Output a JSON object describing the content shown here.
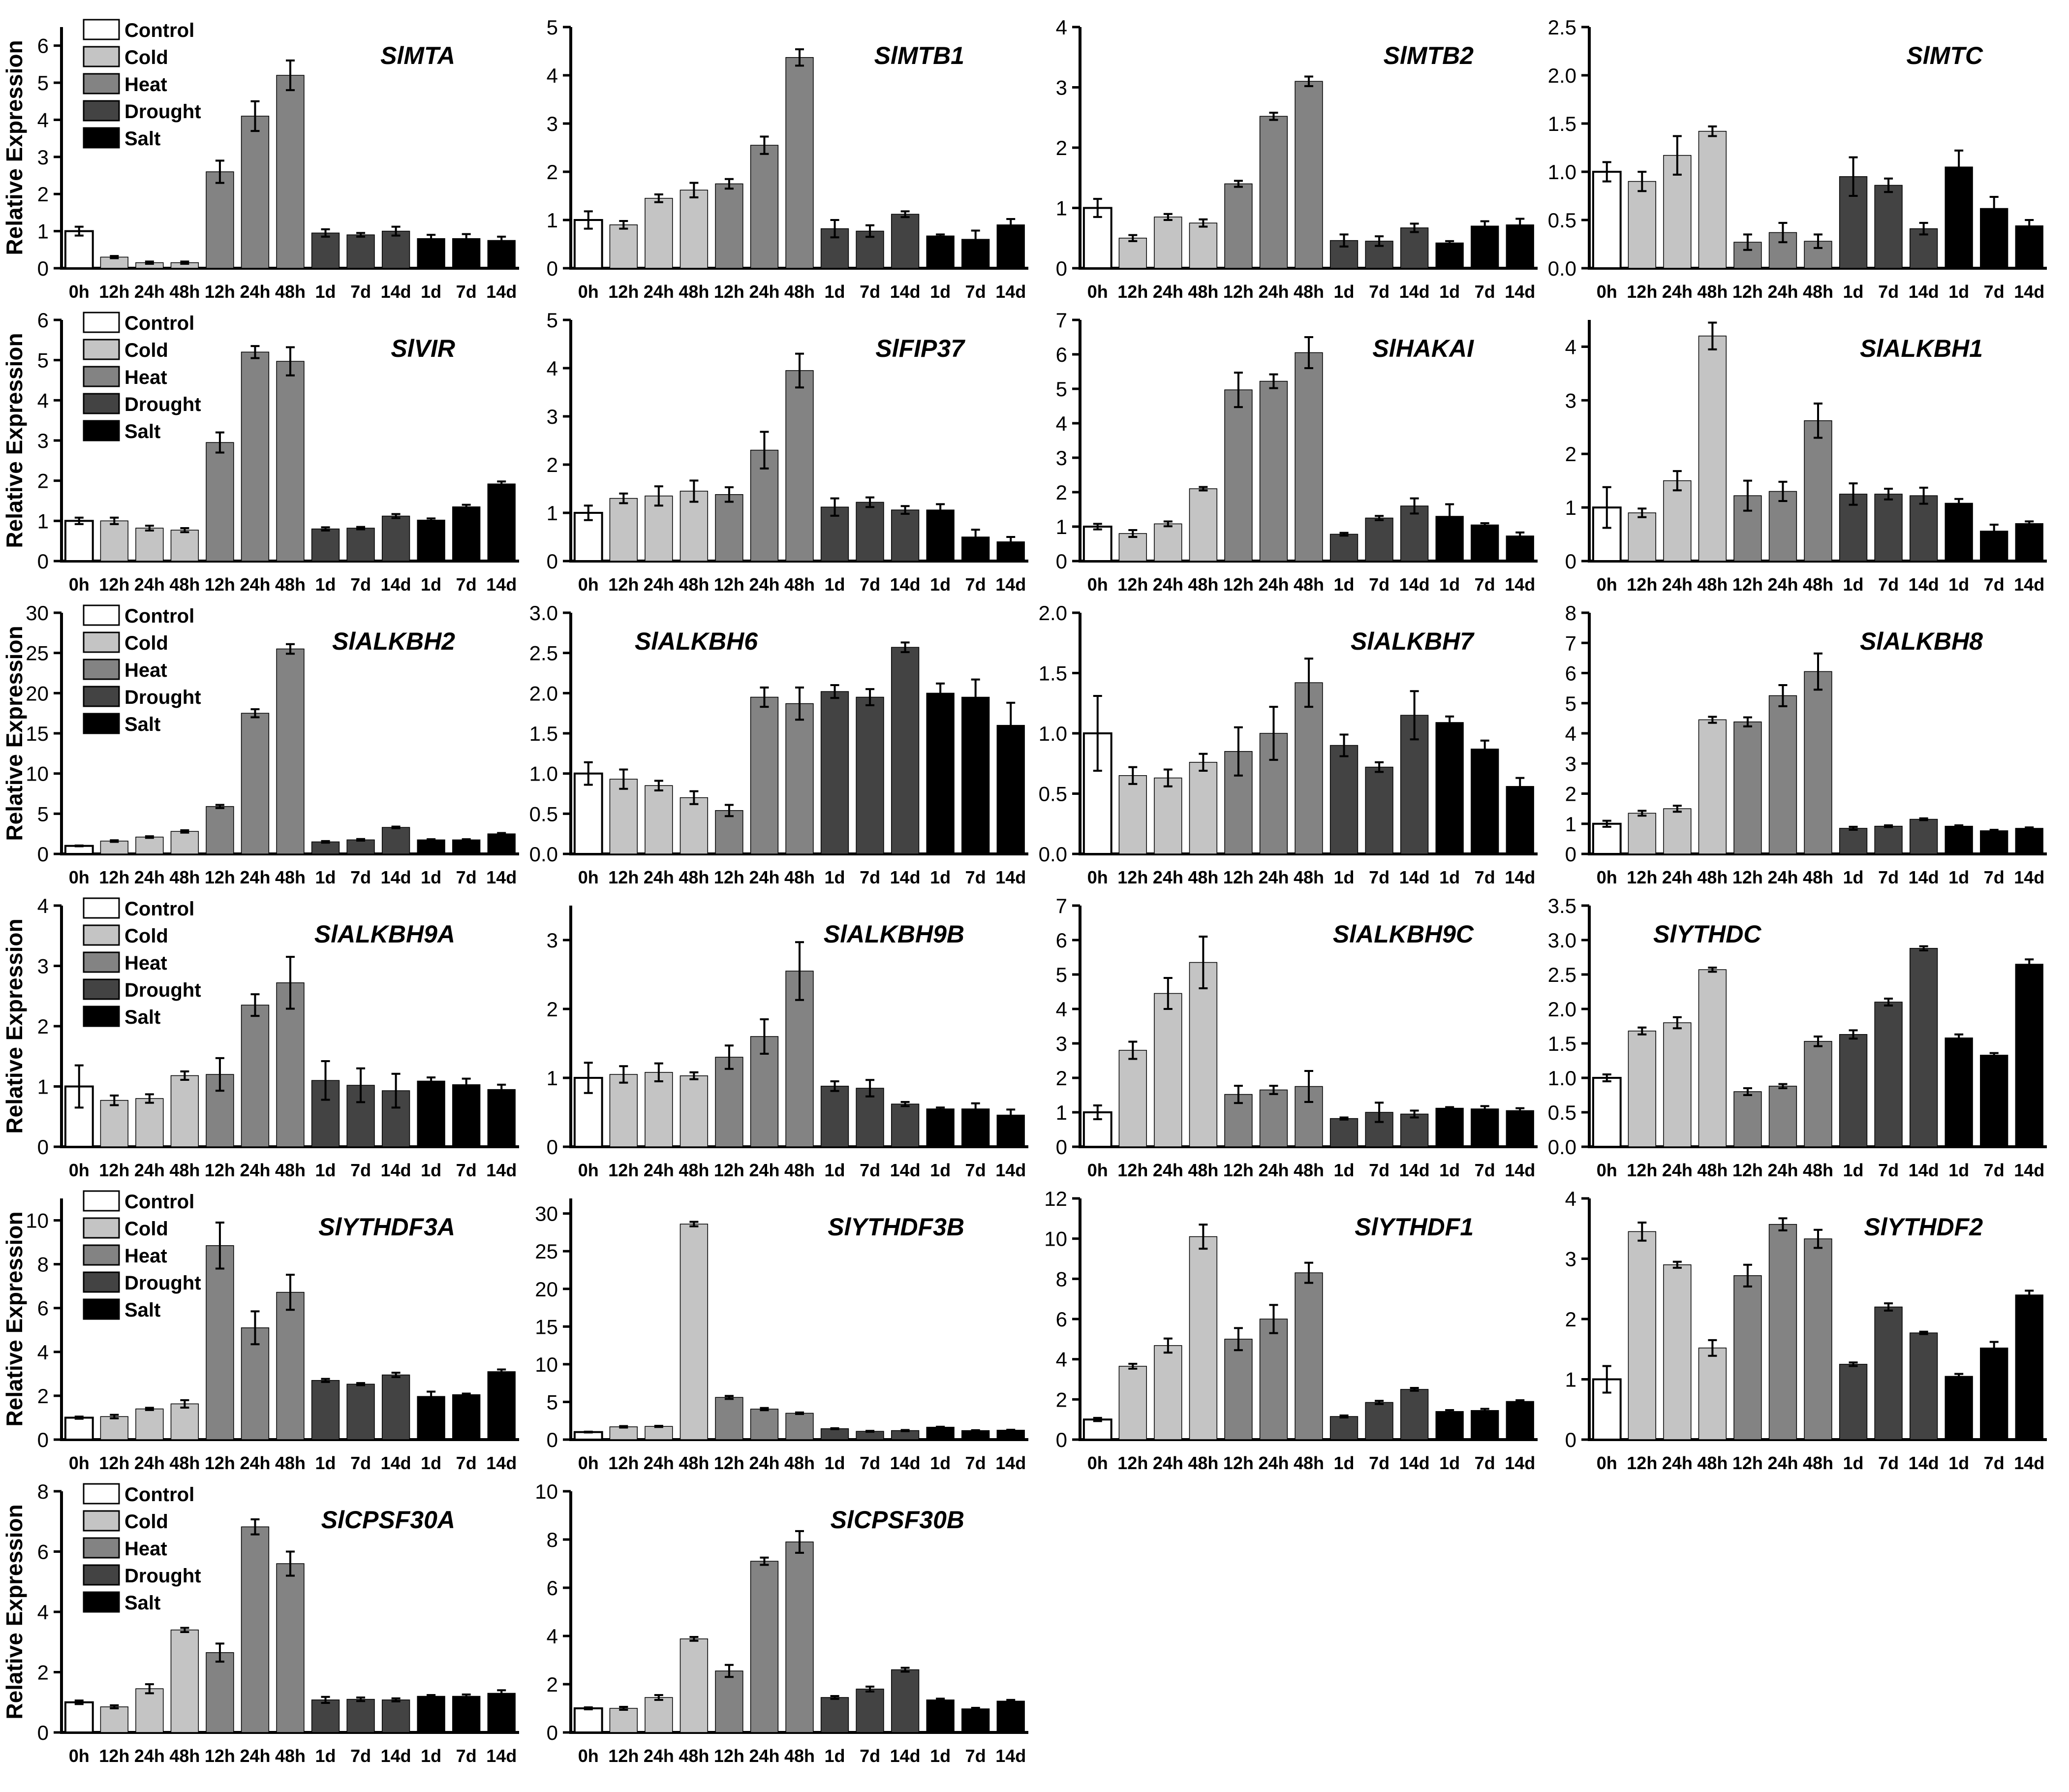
{
  "figure": {
    "ylabel": "Relative Expression",
    "categories": [
      "0h",
      "12h",
      "24h",
      "48h",
      "12h",
      "24h",
      "48h",
      "1d",
      "7d",
      "14d",
      "1d",
      "7d",
      "14d"
    ],
    "colors": {
      "Control": "#ffffff",
      "Cold": "#c4c4c4",
      "Heat": "#838383",
      "Drought": "#434343",
      "Salt": "#000000"
    },
    "legend": [
      "Control",
      "Cold",
      "Heat",
      "Drought",
      "Salt"
    ],
    "bar_treatment": [
      "Control",
      "Cold",
      "Cold",
      "Cold",
      "Heat",
      "Heat",
      "Heat",
      "Drought",
      "Drought",
      "Drought",
      "Salt",
      "Salt",
      "Salt"
    ]
  },
  "chart_data": [
    {
      "type": "bar",
      "title": "SlMTA",
      "ylim": [
        0,
        6.5
      ],
      "yticks": [
        0,
        1,
        2,
        3,
        4,
        5,
        6
      ],
      "tick_labels": [
        "0",
        "1",
        "2",
        "3",
        "4",
        "5",
        "6"
      ],
      "legend": true,
      "title_pos": "right",
      "values": [
        1.0,
        0.3,
        0.15,
        0.15,
        2.6,
        4.1,
        5.2,
        0.95,
        0.9,
        1.0,
        0.8,
        0.8,
        0.75
      ],
      "errors": [
        0.12,
        0.03,
        0.03,
        0.03,
        0.3,
        0.4,
        0.4,
        0.1,
        0.05,
        0.12,
        0.1,
        0.12,
        0.1
      ]
    },
    {
      "type": "bar",
      "title": "SlMTB1",
      "ylim": [
        0,
        5
      ],
      "yticks": [
        0,
        1,
        2,
        3,
        4,
        5
      ],
      "tick_labels": [
        "0",
        "1",
        "2",
        "3",
        "4",
        "5"
      ],
      "legend": false,
      "title_pos": "right",
      "values": [
        1.0,
        0.9,
        1.45,
        1.62,
        1.75,
        2.55,
        4.37,
        0.82,
        0.77,
        1.12,
        0.67,
        0.6,
        0.9
      ],
      "errors": [
        0.18,
        0.08,
        0.08,
        0.15,
        0.1,
        0.18,
        0.17,
        0.18,
        0.12,
        0.06,
        0.03,
        0.18,
        0.12
      ]
    },
    {
      "type": "bar",
      "title": "SlMTB2",
      "ylim": [
        0,
        4
      ],
      "yticks": [
        0,
        1,
        2,
        3,
        4
      ],
      "tick_labels": [
        "0",
        "1",
        "2",
        "3",
        "4"
      ],
      "legend": false,
      "title_pos": "right",
      "values": [
        1.0,
        0.5,
        0.85,
        0.75,
        1.4,
        2.52,
        3.1,
        0.46,
        0.45,
        0.67,
        0.42,
        0.7,
        0.72
      ],
      "errors": [
        0.15,
        0.05,
        0.05,
        0.06,
        0.05,
        0.06,
        0.08,
        0.1,
        0.08,
        0.07,
        0.03,
        0.08,
        0.1
      ]
    },
    {
      "type": "bar",
      "title": "SlMTC",
      "ylim": [
        0,
        2.5
      ],
      "yticks": [
        0,
        0.5,
        1.0,
        1.5,
        2.0,
        2.5
      ],
      "tick_labels": [
        "0.0",
        "0.5",
        "1.0",
        "1.5",
        "2.0",
        "2.5"
      ],
      "legend": false,
      "title_pos": "right",
      "values": [
        1.0,
        0.9,
        1.17,
        1.42,
        0.27,
        0.37,
        0.28,
        0.95,
        0.86,
        0.41,
        1.05,
        0.62,
        0.44
      ],
      "errors": [
        0.1,
        0.1,
        0.2,
        0.05,
        0.08,
        0.1,
        0.07,
        0.2,
        0.07,
        0.06,
        0.17,
        0.12,
        0.06
      ]
    },
    {
      "type": "bar",
      "title": "SlVIR",
      "ylim": [
        0,
        6
      ],
      "yticks": [
        0,
        1,
        2,
        3,
        4,
        5,
        6
      ],
      "tick_labels": [
        "0",
        "1",
        "2",
        "3",
        "4",
        "5",
        "6"
      ],
      "legend": true,
      "title_pos": "right",
      "values": [
        1.0,
        1.0,
        0.82,
        0.77,
        2.95,
        5.2,
        4.97,
        0.8,
        0.82,
        1.12,
        1.02,
        1.35,
        1.92
      ],
      "errors": [
        0.08,
        0.08,
        0.06,
        0.05,
        0.25,
        0.15,
        0.35,
        0.04,
        0.03,
        0.05,
        0.04,
        0.05,
        0.06
      ]
    },
    {
      "type": "bar",
      "title": "SlFIP37",
      "ylim": [
        0,
        5
      ],
      "yticks": [
        0,
        1,
        2,
        3,
        4,
        5
      ],
      "tick_labels": [
        "0",
        "1",
        "2",
        "3",
        "4",
        "5"
      ],
      "legend": false,
      "title_pos": "right",
      "values": [
        1.0,
        1.3,
        1.35,
        1.45,
        1.38,
        2.3,
        3.95,
        1.12,
        1.22,
        1.06,
        1.06,
        0.5,
        0.4
      ],
      "errors": [
        0.15,
        0.1,
        0.2,
        0.22,
        0.15,
        0.38,
        0.35,
        0.18,
        0.1,
        0.08,
        0.12,
        0.15,
        0.1
      ]
    },
    {
      "type": "bar",
      "title": "SlHAKAI",
      "ylim": [
        0,
        7
      ],
      "yticks": [
        0,
        1,
        2,
        3,
        4,
        5,
        6,
        7
      ],
      "tick_labels": [
        "0",
        "1",
        "2",
        "3",
        "4",
        "5",
        "6",
        "7"
      ],
      "legend": false,
      "title_pos": "right",
      "values": [
        1.0,
        0.8,
        1.08,
        2.1,
        4.97,
        5.22,
        6.05,
        0.78,
        1.25,
        1.6,
        1.3,
        1.05,
        0.73
      ],
      "errors": [
        0.08,
        0.1,
        0.07,
        0.05,
        0.5,
        0.2,
        0.45,
        0.04,
        0.06,
        0.22,
        0.35,
        0.05,
        0.1
      ]
    },
    {
      "type": "bar",
      "title": "SlALKBH1",
      "ylim": [
        0,
        4.5
      ],
      "yticks": [
        0,
        1,
        2,
        3,
        4
      ],
      "tick_labels": [
        "0",
        "1",
        "2",
        "3",
        "4"
      ],
      "legend": false,
      "title_pos": "right",
      "values": [
        1.0,
        0.9,
        1.5,
        4.2,
        1.22,
        1.3,
        2.62,
        1.25,
        1.25,
        1.22,
        1.08,
        0.56,
        0.7
      ],
      "errors": [
        0.38,
        0.08,
        0.18,
        0.25,
        0.28,
        0.18,
        0.32,
        0.2,
        0.1,
        0.15,
        0.08,
        0.12,
        0.04
      ]
    },
    {
      "type": "bar",
      "title": "SlALKBH2",
      "ylim": [
        0,
        30
      ],
      "yticks": [
        0,
        5,
        10,
        15,
        20,
        25,
        30
      ],
      "tick_labels": [
        "0",
        "5",
        "10",
        "15",
        "20",
        "25",
        "30"
      ],
      "legend": true,
      "title_pos": "right",
      "values": [
        1.0,
        1.6,
        2.1,
        2.8,
        5.9,
        17.5,
        25.5,
        1.5,
        1.75,
        3.3,
        1.75,
        1.75,
        2.5
      ],
      "errors": [
        0.05,
        0.1,
        0.1,
        0.15,
        0.2,
        0.5,
        0.6,
        0.1,
        0.1,
        0.1,
        0.08,
        0.08,
        0.1
      ]
    },
    {
      "type": "bar",
      "title": "SlALKBH6",
      "ylim": [
        0,
        3.0
      ],
      "yticks": [
        0,
        0.5,
        1.0,
        1.5,
        2.0,
        2.5,
        3.0
      ],
      "tick_labels": [
        "0.0",
        "0.5",
        "1.0",
        "1.5",
        "2.0",
        "2.5",
        "3.0"
      ],
      "legend": false,
      "title_pos": "left",
      "values": [
        1.0,
        0.93,
        0.85,
        0.7,
        0.54,
        1.95,
        1.87,
        2.02,
        1.95,
        2.57,
        2.0,
        1.95,
        1.6
      ],
      "errors": [
        0.14,
        0.12,
        0.06,
        0.08,
        0.07,
        0.12,
        0.2,
        0.08,
        0.1,
        0.06,
        0.12,
        0.22,
        0.28
      ]
    },
    {
      "type": "bar",
      "title": "SlALKBH7",
      "ylim": [
        0,
        2.0
      ],
      "yticks": [
        0,
        0.5,
        1.0,
        1.5,
        2.0
      ],
      "tick_labels": [
        "0.0",
        "0.5",
        "1.0",
        "1.5",
        "2.0"
      ],
      "legend": false,
      "title_pos": "right",
      "values": [
        1.0,
        0.65,
        0.63,
        0.76,
        0.85,
        1.0,
        1.42,
        0.9,
        0.72,
        1.15,
        1.09,
        0.87,
        0.56
      ],
      "errors": [
        0.31,
        0.07,
        0.07,
        0.07,
        0.2,
        0.22,
        0.2,
        0.09,
        0.04,
        0.2,
        0.05,
        0.07,
        0.07
      ]
    },
    {
      "type": "bar",
      "title": "SlALKBH8",
      "ylim": [
        0,
        8
      ],
      "yticks": [
        0,
        1,
        2,
        3,
        4,
        5,
        6,
        7,
        8
      ],
      "tick_labels": [
        "0",
        "1",
        "2",
        "3",
        "4",
        "5",
        "6",
        "7",
        "8"
      ],
      "legend": false,
      "title_pos": "right",
      "values": [
        1.0,
        1.35,
        1.5,
        4.45,
        4.38,
        5.25,
        6.05,
        0.85,
        0.92,
        1.15,
        0.92,
        0.77,
        0.85
      ],
      "errors": [
        0.1,
        0.08,
        0.1,
        0.1,
        0.15,
        0.35,
        0.6,
        0.05,
        0.03,
        0.03,
        0.03,
        0.03,
        0.03
      ]
    },
    {
      "type": "bar",
      "title": "SlALKBH9A",
      "ylim": [
        0,
        4
      ],
      "yticks": [
        0,
        1,
        2,
        3,
        4
      ],
      "tick_labels": [
        "0",
        "1",
        "2",
        "3",
        "4"
      ],
      "legend": true,
      "title_pos": "right",
      "values": [
        1.0,
        0.77,
        0.8,
        1.18,
        1.2,
        2.35,
        2.72,
        1.1,
        1.02,
        0.93,
        1.09,
        1.03,
        0.95
      ],
      "errors": [
        0.35,
        0.08,
        0.07,
        0.07,
        0.27,
        0.18,
        0.43,
        0.32,
        0.28,
        0.28,
        0.06,
        0.1,
        0.08
      ]
    },
    {
      "type": "bar",
      "title": "SlALKBH9B",
      "ylim": [
        0,
        3.5
      ],
      "yticks": [
        0,
        1,
        2,
        3
      ],
      "tick_labels": [
        "0",
        "1",
        "2",
        "3"
      ],
      "legend": false,
      "title_pos": "right",
      "values": [
        1.0,
        1.05,
        1.08,
        1.03,
        1.3,
        1.6,
        2.55,
        0.88,
        0.85,
        0.62,
        0.55,
        0.55,
        0.46
      ],
      "errors": [
        0.22,
        0.12,
        0.13,
        0.05,
        0.17,
        0.25,
        0.42,
        0.07,
        0.12,
        0.03,
        0.02,
        0.08,
        0.08
      ]
    },
    {
      "type": "bar",
      "title": "SlALKBH9C",
      "ylim": [
        0,
        7
      ],
      "yticks": [
        0,
        1,
        2,
        3,
        4,
        5,
        6,
        7
      ],
      "tick_labels": [
        "0",
        "1",
        "2",
        "3",
        "4",
        "5",
        "6",
        "7"
      ],
      "legend": false,
      "title_pos": "right",
      "values": [
        1.0,
        2.8,
        4.45,
        5.35,
        1.52,
        1.65,
        1.75,
        0.82,
        1.0,
        0.95,
        1.12,
        1.1,
        1.05
      ],
      "errors": [
        0.2,
        0.25,
        0.45,
        0.75,
        0.25,
        0.12,
        0.45,
        0.03,
        0.28,
        0.1,
        0.03,
        0.08,
        0.07
      ]
    },
    {
      "type": "bar",
      "title": "SlYTHDC",
      "ylim": [
        0,
        3.5
      ],
      "yticks": [
        0,
        0.5,
        1.0,
        1.5,
        2.0,
        2.5,
        3.0,
        3.5
      ],
      "tick_labels": [
        "0.0",
        "0.5",
        "1.0",
        "1.5",
        "2.0",
        "2.5",
        "3.0",
        "3.5"
      ],
      "legend": false,
      "title_pos": "left",
      "values": [
        1.0,
        1.68,
        1.8,
        2.57,
        0.8,
        0.88,
        1.53,
        1.63,
        2.1,
        2.88,
        1.58,
        1.33,
        2.65
      ],
      "errors": [
        0.05,
        0.05,
        0.08,
        0.03,
        0.05,
        0.03,
        0.07,
        0.06,
        0.05,
        0.03,
        0.05,
        0.03,
        0.07
      ]
    },
    {
      "type": "bar",
      "title": "SlYTHDF3A",
      "ylim": [
        0,
        11
      ],
      "yticks": [
        0,
        2,
        4,
        6,
        8,
        10
      ],
      "tick_labels": [
        "0",
        "2",
        "4",
        "6",
        "8",
        "10"
      ],
      "legend": true,
      "title_pos": "right",
      "values": [
        1.0,
        1.05,
        1.4,
        1.63,
        8.85,
        5.1,
        6.72,
        2.7,
        2.53,
        2.95,
        1.97,
        2.05,
        3.1
      ],
      "errors": [
        0.05,
        0.08,
        0.05,
        0.17,
        1.05,
        0.75,
        0.8,
        0.07,
        0.05,
        0.1,
        0.22,
        0.05,
        0.1
      ]
    },
    {
      "type": "bar",
      "title": "SlYTHDF3B",
      "ylim": [
        0,
        32
      ],
      "yticks": [
        0,
        5,
        10,
        15,
        20,
        25,
        30
      ],
      "tick_labels": [
        "0",
        "5",
        "10",
        "15",
        "20",
        "25",
        "30"
      ],
      "legend": false,
      "title_pos": "right",
      "values": [
        1.0,
        1.7,
        1.75,
        28.6,
        5.6,
        4.05,
        3.5,
        1.45,
        1.1,
        1.2,
        1.65,
        1.2,
        1.25
      ],
      "errors": [
        0.05,
        0.1,
        0.08,
        0.3,
        0.2,
        0.15,
        0.1,
        0.06,
        0.06,
        0.07,
        0.06,
        0.05,
        0.06
      ]
    },
    {
      "type": "bar",
      "title": "SlYTHDF1",
      "ylim": [
        0,
        12
      ],
      "yticks": [
        0,
        2,
        4,
        6,
        8,
        10,
        12
      ],
      "tick_labels": [
        "0",
        "2",
        "4",
        "6",
        "8",
        "10",
        "12"
      ],
      "legend": false,
      "title_pos": "right",
      "values": [
        1.0,
        3.65,
        4.68,
        10.1,
        5.0,
        6.0,
        8.3,
        1.15,
        1.85,
        2.5,
        1.4,
        1.45,
        1.9
      ],
      "errors": [
        0.08,
        0.12,
        0.35,
        0.6,
        0.55,
        0.7,
        0.5,
        0.05,
        0.08,
        0.07,
        0.07,
        0.08,
        0.06
      ]
    },
    {
      "type": "bar",
      "title": "SlYTHDF2",
      "ylim": [
        0,
        4
      ],
      "yticks": [
        0,
        1,
        2,
        3,
        4
      ],
      "tick_labels": [
        "0",
        "1",
        "2",
        "3",
        "4"
      ],
      "legend": false,
      "title_pos": "right",
      "values": [
        1.0,
        3.45,
        2.9,
        1.52,
        2.72,
        3.57,
        3.33,
        1.25,
        2.2,
        1.77,
        1.05,
        1.52,
        2.4
      ],
      "errors": [
        0.22,
        0.15,
        0.05,
        0.13,
        0.18,
        0.1,
        0.15,
        0.03,
        0.06,
        0.02,
        0.04,
        0.1,
        0.07
      ]
    },
    {
      "type": "bar",
      "title": "SlCPSF30A",
      "ylim": [
        0,
        8
      ],
      "yticks": [
        0,
        2,
        4,
        6,
        8
      ],
      "tick_labels": [
        "0",
        "2",
        "4",
        "6",
        "8"
      ],
      "legend": true,
      "title_pos": "right",
      "values": [
        1.0,
        0.85,
        1.45,
        3.4,
        2.65,
        6.82,
        5.6,
        1.08,
        1.1,
        1.08,
        1.2,
        1.2,
        1.3
      ],
      "errors": [
        0.06,
        0.05,
        0.15,
        0.07,
        0.3,
        0.25,
        0.4,
        0.1,
        0.06,
        0.05,
        0.04,
        0.06,
        0.1
      ]
    },
    {
      "type": "bar",
      "title": "SlCPSF30B",
      "ylim": [
        0,
        10
      ],
      "yticks": [
        0,
        2,
        4,
        6,
        8,
        10
      ],
      "tick_labels": [
        "0",
        "2",
        "4",
        "6",
        "8",
        "10"
      ],
      "legend": false,
      "title_pos": "right",
      "values": [
        1.0,
        1.0,
        1.45,
        3.88,
        2.55,
        7.1,
        7.9,
        1.45,
        1.8,
        2.6,
        1.35,
        0.98,
        1.3
      ],
      "errors": [
        0.04,
        0.06,
        0.1,
        0.08,
        0.25,
        0.15,
        0.45,
        0.06,
        0.1,
        0.08,
        0.05,
        0.04,
        0.05
      ]
    }
  ]
}
